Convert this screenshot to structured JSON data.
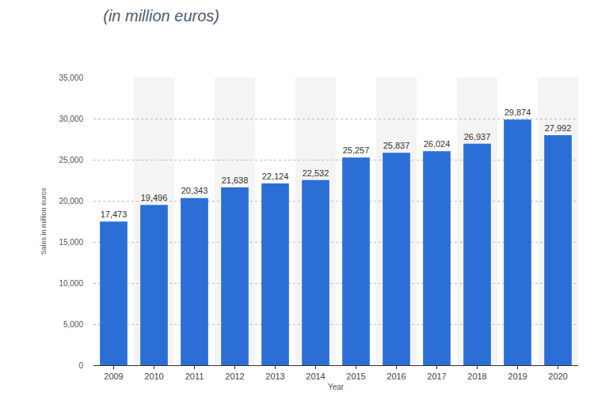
{
  "chart_data": {
    "type": "bar",
    "title": "(in million euros)",
    "x_label": "Year",
    "y_label": "Sales in million euros",
    "categories": [
      "2009",
      "2010",
      "2011",
      "2012",
      "2013",
      "2014",
      "2015",
      "2016",
      "2017",
      "2018",
      "2019",
      "2020"
    ],
    "values": [
      17473,
      19496,
      20343,
      21638,
      22124,
      22532,
      25257,
      25837,
      26024,
      26937,
      29874,
      27992
    ],
    "value_labels": [
      "17,473",
      "19,496",
      "20,343",
      "21,638",
      "22,124",
      "22,532",
      "25,257",
      "25,837",
      "26,024",
      "26,937",
      "29,874",
      "27,992"
    ],
    "color": "#2b6fd6",
    "ylim": [
      0,
      35000
    ],
    "yticks": [
      0,
      {
        "value": 5000,
        "label": "5,000"
      },
      {
        "value": 10000,
        "label": "10,000"
      },
      {
        "value": 15000,
        "label": "15,000"
      },
      {
        "value": 20000,
        "label": "20,000"
      },
      {
        "value": 25000,
        "label": "25,000"
      },
      {
        "value": 30000,
        "label": "30,000"
      },
      {
        "value": 35000,
        "label": "35,000"
      }
    ],
    "grid": true,
    "data_labels": true
  }
}
